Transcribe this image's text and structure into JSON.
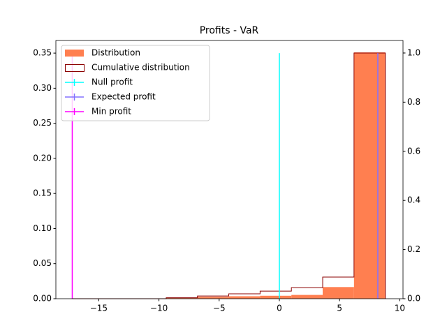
{
  "chart_data": {
    "type": "histogram",
    "title": "Profits - VaR",
    "bins": [
      -17.2,
      -14.6,
      -12.0,
      -9.4,
      -6.8,
      -4.2,
      -1.6,
      1.0,
      3.6,
      6.2,
      8.8
    ],
    "series": [
      {
        "name": "Distribution",
        "color": "#ff7f50",
        "values": [
          0,
          0,
          0,
          0.0015,
          0.0027,
          0.0035,
          0.0042,
          0.0054,
          0.0166,
          0.351
        ]
      },
      {
        "name": "Cumulative distribution",
        "color": "#8b0000",
        "axis": "y2",
        "values": [
          0,
          0,
          0,
          0.004,
          0.011,
          0.02,
          0.031,
          0.045,
          0.088,
          1.0
        ]
      }
    ],
    "vlines": [
      {
        "name": "Null profit",
        "color": "#00ffff",
        "x": 0
      },
      {
        "name": "Expected profit",
        "color": "#8470ff",
        "x": 8.18
      },
      {
        "name": "Min profit",
        "color": "#ff00ff",
        "x": -17.2
      }
    ],
    "vline_ylim": [
      0,
      0.35
    ],
    "xlim": [
      -18.56,
      10.27
    ],
    "xticks": [
      {
        "value": -15,
        "label": "−15"
      },
      {
        "value": -10,
        "label": "−10"
      },
      {
        "value": -5,
        "label": "−5"
      },
      0,
      5,
      10
    ],
    "ylim": [
      0,
      0.368
    ],
    "yticks": [
      {
        "value": 0,
        "label": "0.00"
      },
      {
        "value": 0.05,
        "label": "0.05"
      },
      {
        "value": 0.1,
        "label": "0.10"
      },
      {
        "value": 0.15,
        "label": "0.15"
      },
      {
        "value": 0.2,
        "label": "0.20"
      },
      {
        "value": 0.25,
        "label": "0.25"
      },
      {
        "value": 0.3,
        "label": "0.30"
      },
      {
        "value": 0.35,
        "label": "0.35"
      }
    ],
    "y2lim": [
      0,
      1.051
    ],
    "y2ticks": [
      {
        "value": 0,
        "label": "0.0"
      },
      {
        "value": 0.2,
        "label": "0.2"
      },
      {
        "value": 0.4,
        "label": "0.4"
      },
      {
        "value": 0.6,
        "label": "0.6"
      },
      {
        "value": 0.8,
        "label": "0.8"
      },
      {
        "value": 1.0,
        "label": "1.0"
      }
    ],
    "legend": "upper left"
  }
}
